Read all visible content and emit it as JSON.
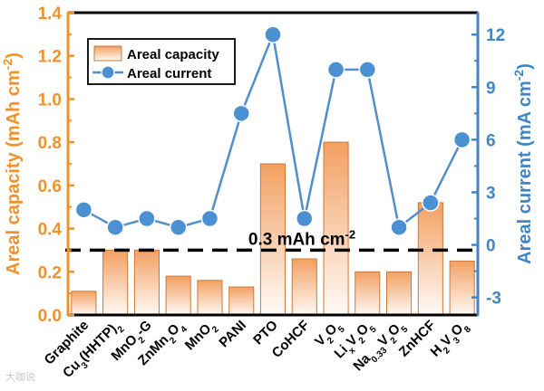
{
  "chart_data": {
    "type": "bar+line",
    "categories": [
      {
        "id": "graphite",
        "label": [
          {
            "t": "Graphite"
          }
        ]
      },
      {
        "id": "cu3-hhtp2",
        "label": [
          {
            "t": "Cu"
          },
          {
            "t": "3",
            "sub": true
          },
          {
            "t": "(HHTP)"
          },
          {
            "t": "2",
            "sub": true
          }
        ]
      },
      {
        "id": "mno2-g",
        "label": [
          {
            "t": "MnO"
          },
          {
            "t": "2",
            "sub": true
          },
          {
            "t": "-G"
          }
        ]
      },
      {
        "id": "znmn2o4",
        "label": [
          {
            "t": "ZnMn"
          },
          {
            "t": "2",
            "sub": true
          },
          {
            "t": "O"
          },
          {
            "t": "4",
            "sub": true
          }
        ]
      },
      {
        "id": "mno2",
        "label": [
          {
            "t": "MnO"
          },
          {
            "t": "2",
            "sub": true
          }
        ]
      },
      {
        "id": "pani",
        "label": [
          {
            "t": "PANI"
          }
        ]
      },
      {
        "id": "pto",
        "label": [
          {
            "t": "PTO"
          }
        ]
      },
      {
        "id": "cohcf",
        "label": [
          {
            "t": "CoHCF"
          }
        ]
      },
      {
        "id": "v2o5",
        "label": [
          {
            "t": "V"
          },
          {
            "t": "2",
            "sub": true
          },
          {
            "t": "O"
          },
          {
            "t": "5",
            "sub": true
          }
        ]
      },
      {
        "id": "lixv2o5",
        "label": [
          {
            "t": "Li"
          },
          {
            "t": "x",
            "sub": true
          },
          {
            "t": "V"
          },
          {
            "t": "2",
            "sub": true
          },
          {
            "t": "O"
          },
          {
            "t": "5",
            "sub": true
          }
        ]
      },
      {
        "id": "na033v2o5",
        "label": [
          {
            "t": "Na"
          },
          {
            "t": "0.33",
            "sub": true
          },
          {
            "t": "V"
          },
          {
            "t": "2",
            "sub": true
          },
          {
            "t": "O"
          },
          {
            "t": "5",
            "sub": true
          }
        ]
      },
      {
        "id": "znhcf",
        "label": [
          {
            "t": "ZnHCF"
          }
        ]
      },
      {
        "id": "h2v3o8",
        "label": [
          {
            "t": "H"
          },
          {
            "t": "2",
            "sub": true
          },
          {
            "t": "V"
          },
          {
            "t": "3",
            "sub": true
          },
          {
            "t": "O"
          },
          {
            "t": "8",
            "sub": true
          }
        ]
      }
    ],
    "series": [
      {
        "name": "Areal capacity",
        "kind": "bar",
        "axis": "left",
        "values": [
          0.11,
          0.3,
          0.3,
          0.18,
          0.16,
          0.13,
          0.7,
          0.26,
          0.8,
          0.2,
          0.2,
          0.52,
          0.25
        ]
      },
      {
        "name": "Areal current",
        "kind": "line",
        "axis": "right",
        "values": [
          2.0,
          1.0,
          1.5,
          1.0,
          1.5,
          7.5,
          12.0,
          1.5,
          10.0,
          10.0,
          1.0,
          2.4,
          6.0
        ]
      }
    ],
    "left_axis": {
      "label_parts": [
        {
          "t": "Areal capacity (mAh cm"
        },
        {
          "t": "-2",
          "sup": true
        },
        {
          "t": ")"
        }
      ],
      "ylim": [
        0,
        1.4
      ],
      "ticks": [
        "0.0",
        "0.2",
        "0.4",
        "0.6",
        "0.8",
        "1.0",
        "1.2",
        "1.4"
      ],
      "color": "#f0922b"
    },
    "right_axis": {
      "label_parts": [
        {
          "t": "Areal current (mA cm"
        },
        {
          "t": "-2",
          "sup": true
        },
        {
          "t": ")"
        }
      ],
      "ylim": [
        -4,
        13.25
      ],
      "ticks": [
        "-3",
        "0",
        "3",
        "6",
        "9",
        "12"
      ],
      "color": "#3f86c6"
    },
    "reference_line": {
      "value": 0.3,
      "axis": "left",
      "style": "dashed",
      "label_parts": [
        {
          "t": "0.3 mAh cm"
        },
        {
          "t": "-2",
          "sup": true
        }
      ]
    },
    "legend": {
      "placement": "top-left",
      "items": [
        "Areal capacity",
        "Areal current"
      ]
    },
    "colors": {
      "bar_top": "#f2a062",
      "bar_bottom": "#fffaf6",
      "bar_stroke": "#c87a3d",
      "line": "#4f8fcc",
      "marker_fill": "#4a90d2",
      "marker_stroke": "#ffffff",
      "frame": "#000000",
      "dash": "#000000"
    }
  },
  "watermark": "大咖说"
}
